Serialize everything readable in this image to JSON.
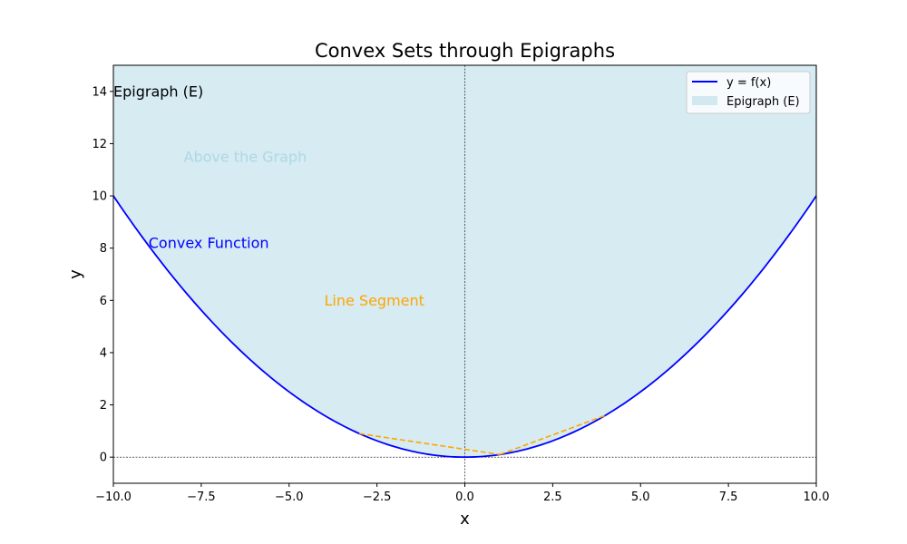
{
  "chart_data": {
    "type": "line",
    "title": "Convex Sets through Epigraphs",
    "xlabel": "x",
    "ylabel": "y",
    "xlim": [
      -10,
      10
    ],
    "ylim": [
      -1,
      15
    ],
    "x_ticks": [
      -10,
      -7.5,
      -5,
      -2.5,
      0,
      2.5,
      5,
      7.5,
      10
    ],
    "x_tick_labels": [
      "−10.0",
      "−7.5",
      "−5.0",
      "−2.5",
      "0.0",
      "2.5",
      "5.0",
      "7.5",
      "10.0"
    ],
    "y_ticks": [
      0,
      2,
      4,
      6,
      8,
      10,
      12,
      14
    ],
    "y_tick_labels": [
      "0",
      "2",
      "4",
      "6",
      "8",
      "10",
      "12",
      "14"
    ],
    "grid": false,
    "reference_lines": {
      "x": 0,
      "y": 0,
      "color": "#000000",
      "style": "dotted"
    },
    "function": {
      "expression": "y = x^2 / 10",
      "coefficient": 0.1
    },
    "series": [
      {
        "name": "y = f(x)",
        "kind": "line",
        "color": "#0000ff"
      },
      {
        "name": "Epigraph (E)",
        "kind": "fill_above",
        "color": "#add8e6",
        "alpha": 0.5
      }
    ],
    "segments": [
      {
        "points": [
          [
            -3,
            0.9
          ],
          [
            1,
            0.1
          ]
        ],
        "color": "#ffa500",
        "style": "dashed"
      },
      {
        "points": [
          [
            1,
            0.1
          ],
          [
            4,
            1.6
          ]
        ],
        "color": "#ffa500",
        "style": "dashed"
      }
    ],
    "annotations": [
      {
        "text": "Epigraph (E)",
        "x": -10,
        "y": 14,
        "color": "#000000"
      },
      {
        "text": "Above the Graph",
        "x": -8,
        "y": 11.5,
        "color": "#add8e6"
      },
      {
        "text": "Convex Function",
        "x": -9,
        "y": 8.2,
        "color": "#0000ff"
      },
      {
        "text": "Line Segment",
        "x": -4,
        "y": 6,
        "color": "#ffa500"
      }
    ],
    "legend": {
      "position": "top-right",
      "entries": [
        "y = f(x)",
        "Epigraph (E)"
      ]
    }
  }
}
